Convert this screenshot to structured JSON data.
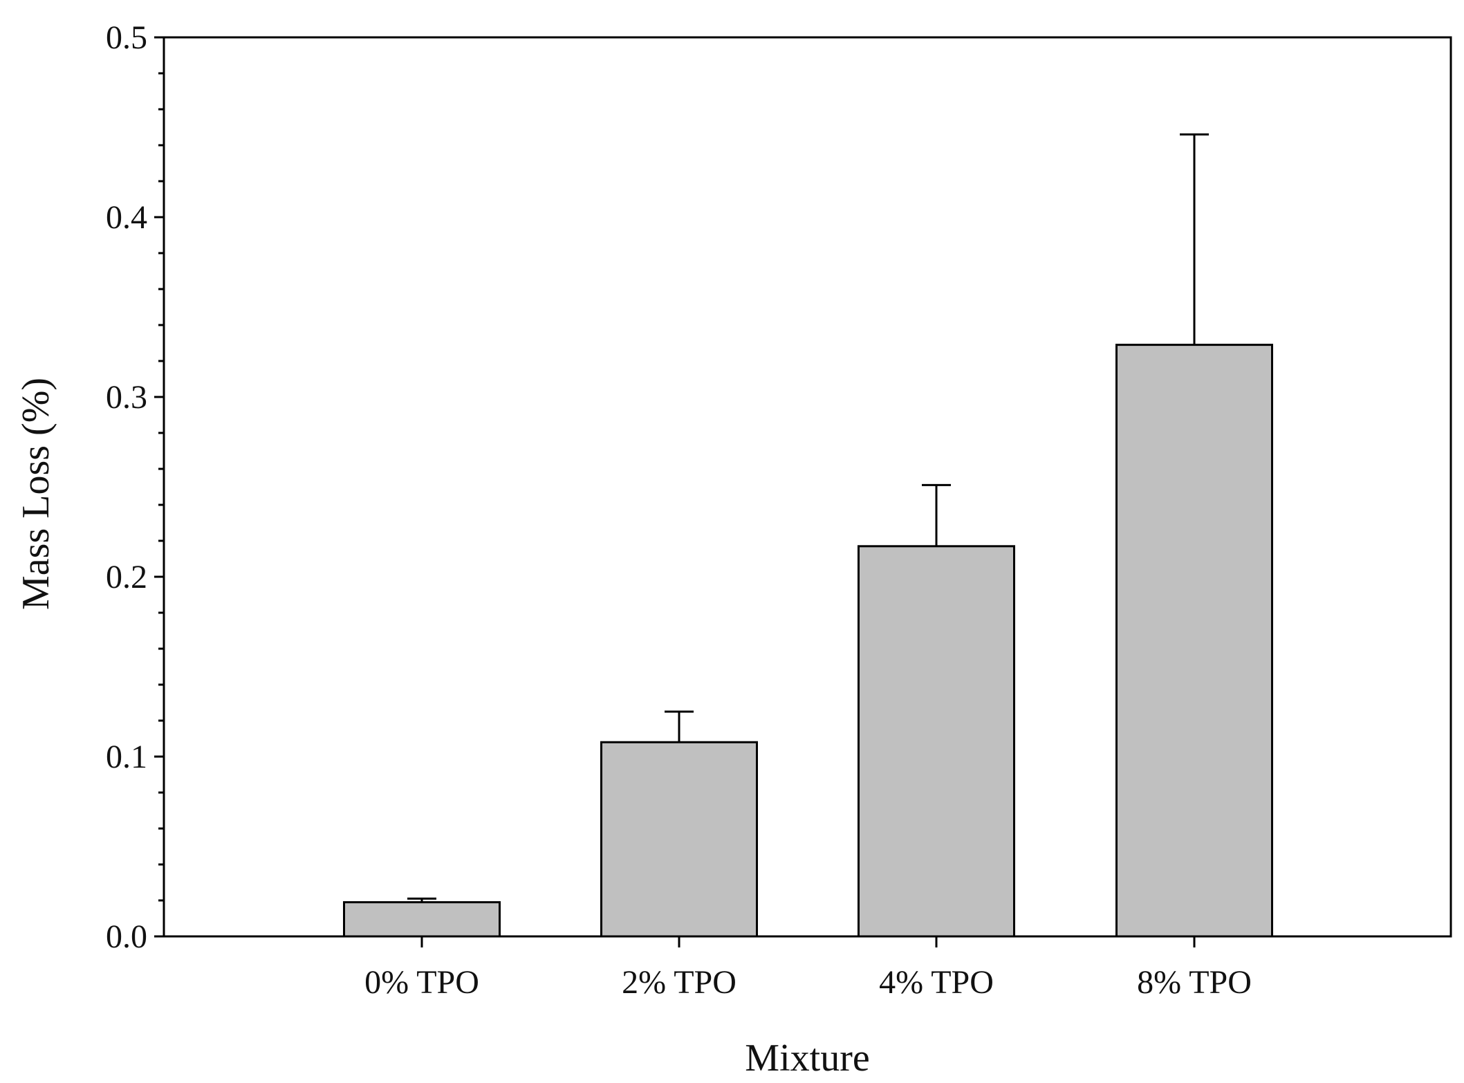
{
  "chart_data": {
    "type": "bar",
    "title": "",
    "xlabel": "Mixture",
    "ylabel": "Mass Loss (%)",
    "categories": [
      "0% TPO",
      "2% TPO",
      "4% TPO",
      "8% TPO"
    ],
    "values": [
      0.019,
      0.108,
      0.217,
      0.329
    ],
    "error_upper": [
      0.002,
      0.017,
      0.034,
      0.117
    ],
    "ylim": [
      0,
      0.5
    ],
    "yticks": [
      0.0,
      0.1,
      0.2,
      0.3,
      0.4,
      0.5
    ],
    "ytick_labels": [
      "0.0",
      "0.1",
      "0.2",
      "0.3",
      "0.4",
      "0.5"
    ],
    "grid": false,
    "legend": "none",
    "bar_color": "#c0c0c0",
    "edge_color": "#000000"
  }
}
